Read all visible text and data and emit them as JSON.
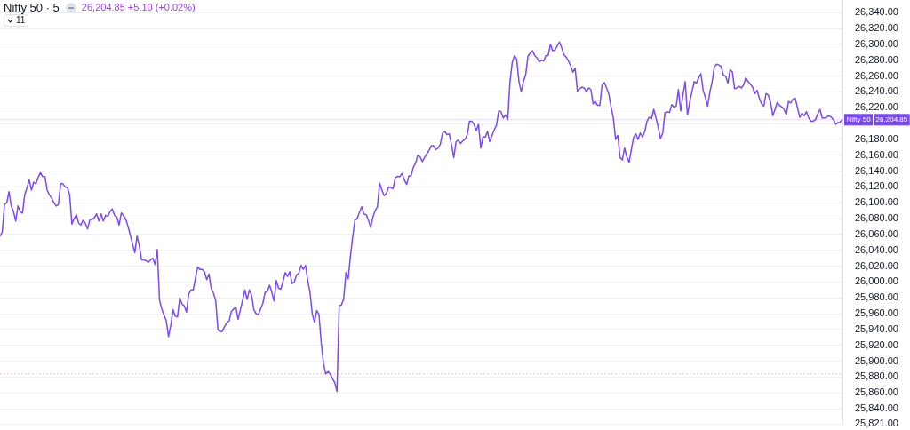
{
  "chart_data": {
    "type": "line",
    "title": "Nifty 50 · 5",
    "subtitle": "26,204.85 +5.10 (+0.02%)",
    "annotations": [
      "11",
      "26,204.85"
    ],
    "categories": [
      null,
      null,
      null,
      null,
      null,
      null,
      null,
      null,
      null,
      null,
      null,
      null,
      null,
      null,
      null,
      null,
      null,
      null,
      null,
      null,
      null,
      null,
      null,
      null,
      null,
      null,
      null,
      null,
      null,
      null,
      null,
      null,
      null,
      null,
      null,
      null,
      null,
      null,
      null,
      null,
      null,
      null,
      null,
      null,
      null,
      null,
      null,
      null,
      null,
      null,
      null,
      null,
      null,
      null,
      null,
      null,
      null,
      null,
      null,
      null,
      null,
      null,
      null,
      null,
      null,
      null,
      null,
      null,
      null,
      null,
      null,
      null,
      null,
      null,
      null,
      null,
      null,
      null,
      null,
      null,
      null,
      null,
      null,
      null,
      null,
      null,
      null,
      null,
      null,
      null,
      null,
      null,
      null,
      null,
      null,
      null,
      null,
      null,
      null,
      null,
      null,
      null,
      null,
      null,
      null,
      null,
      null,
      null,
      null,
      null,
      null,
      null,
      null,
      null,
      null,
      null,
      null,
      null,
      null,
      null,
      null,
      null,
      null,
      null,
      null,
      null,
      null,
      null,
      null,
      null,
      null,
      null,
      null,
      null,
      null,
      null,
      null,
      null,
      null,
      null,
      null,
      null,
      null,
      null,
      null,
      null,
      null,
      null,
      null,
      null,
      null,
      null,
      null,
      null,
      null,
      null,
      null,
      null,
      null,
      null,
      null,
      null,
      null,
      null,
      null,
      null,
      null,
      null,
      null,
      null,
      null,
      null,
      null,
      null,
      null,
      null,
      null,
      null,
      null,
      null,
      null,
      null,
      null,
      null,
      null,
      null,
      null,
      null,
      null,
      null,
      null,
      null,
      null,
      null,
      null,
      null,
      null,
      null,
      null,
      null,
      null,
      null,
      null,
      null,
      null,
      null,
      null,
      null,
      null,
      null,
      null,
      null,
      null,
      null,
      null,
      null,
      null,
      null,
      null,
      null,
      null,
      null,
      null,
      null,
      null,
      null,
      null,
      null,
      null,
      null,
      null,
      null,
      null,
      null,
      null,
      null,
      null,
      null,
      null,
      null,
      null,
      null,
      null,
      null,
      null,
      null,
      null,
      null,
      null,
      null,
      null,
      null,
      null,
      null,
      null,
      null,
      null,
      null,
      null,
      null,
      null,
      null,
      null,
      null,
      null,
      null,
      null,
      null,
      null,
      null,
      null,
      null,
      null,
      null,
      null,
      null,
      null,
      null,
      null,
      null,
      null,
      null,
      null,
      null,
      null,
      null,
      null,
      null,
      null,
      null,
      null,
      null,
      null,
      null,
      null,
      null,
      null,
      null,
      null,
      null,
      null,
      null,
      null,
      null,
      null,
      null,
      null,
      null,
      null,
      null,
      null,
      null,
      null,
      null,
      null,
      null,
      null,
      null,
      null,
      null,
      null,
      null,
      null,
      null,
      null,
      null,
      null,
      null,
      null,
      null,
      null,
      null,
      null,
      null,
      null,
      null,
      null,
      null,
      null,
      null,
      null,
      null,
      null,
      null,
      null,
      null,
      null,
      null,
      null,
      null,
      null,
      null,
      null,
      null,
      null,
      null,
      null,
      null,
      null,
      null,
      null,
      null,
      null,
      null,
      null,
      null,
      null,
      null,
      null,
      null,
      null,
      null,
      null,
      null,
      null,
      null
    ],
    "values": [
      26058,
      26063,
      26098,
      26100,
      26114,
      26096,
      26089,
      26077,
      26096,
      26089,
      26087,
      26110,
      26119,
      26129,
      26116,
      26126,
      26124,
      26132,
      26138,
      26133,
      26133,
      26116,
      26110,
      26106,
      26100,
      26096,
      26098,
      26124,
      26124,
      26120,
      26119,
      26110,
      26073,
      26080,
      26085,
      26074,
      26072,
      26078,
      26074,
      26067,
      26079,
      26079,
      26081,
      26086,
      26077,
      26086,
      26077,
      26084,
      26083,
      26089,
      26092,
      26084,
      26082,
      26072,
      26087,
      26084,
      26079,
      26070,
      26059,
      26048,
      26037,
      26058,
      26046,
      26028,
      26028,
      26027,
      26025,
      26028,
      26030,
      26022,
      26041,
      25977,
      25966,
      25958,
      25951,
      25931,
      25945,
      25965,
      25957,
      25956,
      25980,
      25972,
      25970,
      25962,
      25985,
      25990,
      25990,
      26005,
      26019,
      26016,
      26016,
      26013,
      26003,
      26010,
      25992,
      25986,
      25977,
      25940,
      25937,
      25938,
      25944,
      25949,
      25951,
      25963,
      25966,
      25968,
      25953,
      25965,
      25977,
      25990,
      25978,
      25990,
      25983,
      25965,
      25960,
      25959,
      25966,
      25973,
      25987,
      25988,
      25996,
      25987,
      25976,
      26002,
      25992,
      25991,
      26001,
      26012,
      26007,
      26013,
      25998,
      26000,
      26009,
      26011,
      26021,
      26016,
      26021,
      26002,
      25987,
      25960,
      25949,
      25964,
      25959,
      25923,
      25897,
      25884,
      25887,
      25884,
      25878,
      25873,
      25862,
      25970,
      25971,
      25979,
      26012,
      26004,
      26033,
      26057,
      26078,
      26080,
      26088,
      26095,
      26086,
      26085,
      26078,
      26069,
      26082,
      26090,
      26095,
      26125,
      26116,
      26109,
      26112,
      26120,
      26119,
      26118,
      26132,
      26133,
      26133,
      26137,
      26129,
      26123,
      26134,
      26134,
      26145,
      26150,
      26160,
      26158,
      26152,
      26157,
      26162,
      26166,
      26172,
      26172,
      26167,
      26169,
      26174,
      26188,
      26190,
      26186,
      26187,
      26173,
      26157,
      26177,
      26179,
      26175,
      26178,
      26180,
      26186,
      26203,
      26203,
      26199,
      26191,
      26199,
      26169,
      26183,
      26183,
      26190,
      26177,
      26185,
      26192,
      26198,
      26216,
      26215,
      26207,
      26211,
      26205,
      26253,
      26277,
      26286,
      26281,
      26253,
      26240,
      26253,
      26262,
      26285,
      26289,
      26292,
      26286,
      26283,
      26278,
      26280,
      26279,
      26286,
      26286,
      26300,
      26292,
      26293,
      26298,
      26303,
      26296,
      26287,
      26284,
      26279,
      26273,
      26265,
      26270,
      26241,
      26244,
      26246,
      26245,
      26240,
      26245,
      26243,
      26225,
      26228,
      26223,
      26223,
      26249,
      26252,
      26245,
      26237,
      26221,
      26207,
      26180,
      26185,
      26157,
      26154,
      26169,
      26158,
      26151,
      26167,
      26182,
      26187,
      26180,
      26188,
      26183,
      26190,
      26203,
      26208,
      26206,
      26218,
      26207,
      26195,
      26181,
      26188,
      26214,
      26215,
      26214,
      26224,
      26221,
      26222,
      26243,
      26216,
      26236,
      26253,
      26211,
      26227,
      26240,
      26253,
      26251,
      26258,
      26263,
      26242,
      26233,
      26222,
      26240,
      26253,
      26272,
      26275,
      26274,
      26272,
      26261,
      26260,
      26251,
      26268,
      26265,
      26244,
      26245,
      26247,
      26245,
      26249,
      26258,
      26253,
      26250,
      26246,
      26238,
      26242,
      26232,
      26225,
      26222,
      26238,
      26236,
      26227,
      26210,
      26218,
      26227,
      26223,
      26221,
      26218,
      26211,
      26228,
      26226,
      26231,
      26232,
      26220,
      26208,
      26213,
      26210,
      26215,
      26207,
      26203,
      26203,
      26205,
      26212,
      26218,
      26207,
      26207,
      26208,
      26210,
      26208,
      26205,
      26199,
      26201,
      26202,
      26204.85
    ],
    "color": "#7c4af1",
    "ylim": [
      25821,
      26356
    ],
    "yticks": [
      {
        "value": 25821,
        "label": "25,821.00"
      },
      {
        "value": 25840,
        "label": "25,840.00"
      },
      {
        "value": 25860,
        "label": "25,860.00"
      },
      {
        "value": 25880,
        "label": "25,880.00"
      },
      {
        "value": 25900,
        "label": "25,900.00"
      },
      {
        "value": 25920,
        "label": "25,920.00"
      },
      {
        "value": 25940,
        "label": "25,940.00"
      },
      {
        "value": 25960,
        "label": "25,960.00"
      },
      {
        "value": 25980,
        "label": "25,980.00"
      },
      {
        "value": 26000,
        "label": "26,000.00"
      },
      {
        "value": 26020,
        "label": "26,020.00"
      },
      {
        "value": 26040,
        "label": "26,040.00"
      },
      {
        "value": 26060,
        "label": "26,060.00"
      },
      {
        "value": 26080,
        "label": "26,080.00"
      },
      {
        "value": 26100,
        "label": "26,100.00"
      },
      {
        "value": 26120,
        "label": "26,120.00"
      },
      {
        "value": 26140,
        "label": "26,140.00"
      },
      {
        "value": 26160,
        "label": "26,160.00"
      },
      {
        "value": 26180,
        "label": "26,180.00"
      },
      {
        "value": 26200,
        "label": null
      },
      {
        "value": 26220,
        "label": "26,220.00"
      },
      {
        "value": 26240,
        "label": "26,240.00"
      },
      {
        "value": 26260,
        "label": "26,260.00"
      },
      {
        "value": 26280,
        "label": "26,280.00"
      },
      {
        "value": 26300,
        "label": "26,300.00"
      },
      {
        "value": 26320,
        "label": "26,320.00"
      },
      {
        "value": 26340,
        "label": "26,340.00"
      }
    ],
    "ref_lines": [
      {
        "axis": "y",
        "value": 26204.85,
        "label": "Nifty 50",
        "color": "#e9dafb"
      },
      {
        "axis": "y",
        "value": 25884,
        "color": "#f3c2c6",
        "line_style": "dotted"
      }
    ],
    "grid": "y",
    "legend": false,
    "tick_labels": "y",
    "marker": "none"
  }
}
